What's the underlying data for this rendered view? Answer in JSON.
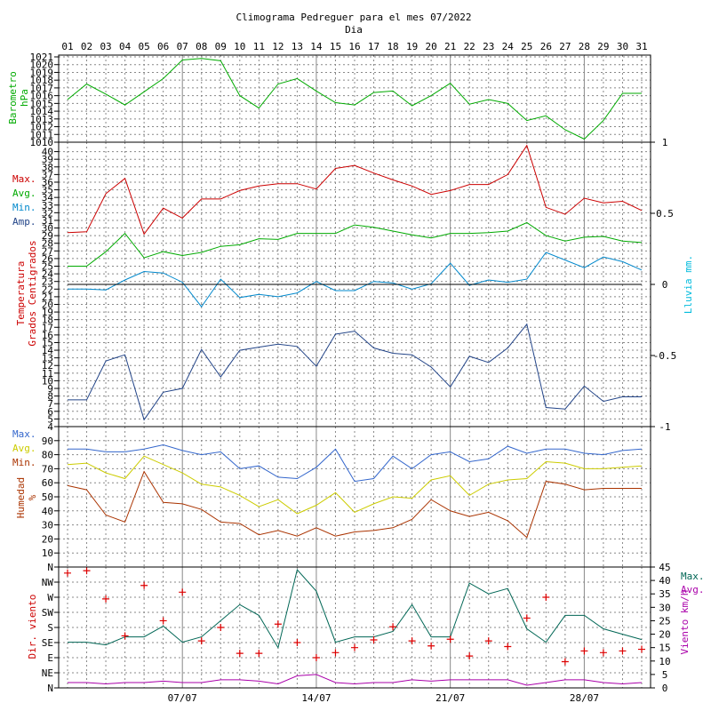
{
  "title": "Climograma Pedreguer para el mes 07/2022",
  "xlabel": "Dia",
  "days": [
    "01",
    "02",
    "03",
    "04",
    "05",
    "06",
    "07",
    "08",
    "09",
    "10",
    "11",
    "12",
    "13",
    "14",
    "15",
    "16",
    "17",
    "18",
    "19",
    "20",
    "21",
    "22",
    "23",
    "24",
    "25",
    "26",
    "27",
    "28",
    "29",
    "30",
    "31"
  ],
  "week_labels": [
    "07/07",
    "14/07",
    "21/07",
    "28/07"
  ],
  "colors": {
    "red": "#cc0000",
    "green": "#00aa00",
    "lightblue": "#0088cc",
    "darkblue": "#224488",
    "humblue": "#3366cc",
    "yellow": "#cccc00",
    "brown": "#aa3300",
    "teal": "#006655",
    "magenta": "#aa00aa",
    "cross": "#dd0000",
    "cyan": "#00bbdd",
    "axis": "#000000",
    "grid": "#888888"
  },
  "chart_data": [
    {
      "type": "line",
      "ylabel": [
        "Barometro",
        "hPa"
      ],
      "ylim": [
        1010,
        1021
      ],
      "y_ticks": [
        "1010",
        "1011",
        "1012",
        "1013",
        "1014",
        "1015",
        "1016",
        "1017",
        "1018",
        "1019",
        "1020",
        "1021"
      ],
      "series": [
        {
          "name": "Barometro",
          "values": [
            1015.5,
            1017.5,
            1016.2,
            1014.8,
            1016.5,
            1018.2,
            1020.6,
            1020.8,
            1020.5,
            1016,
            1014.4,
            1017.5,
            1018.2,
            1016.6,
            1015.1,
            1014.8,
            1016.4,
            1016.6,
            1014.7,
            1016,
            1017.6,
            1014.9,
            1015.5,
            1015,
            1012.8,
            1013.4,
            1011.6,
            1010.4,
            1012.8,
            1016.3,
            1016.3
          ]
        }
      ]
    },
    {
      "type": "line",
      "ylabel": [
        "Temperatura",
        "Grados Centigrados"
      ],
      "y2label": "Lluvia mm.",
      "ylim": [
        4,
        41
      ],
      "y_ticks": [
        "4",
        "5",
        "6",
        "7",
        "8",
        "9",
        "10",
        "11",
        "12",
        "13",
        "14",
        "15",
        "16",
        "17",
        "18",
        "19",
        "20",
        "21",
        "22",
        "23",
        "24",
        "25",
        "26",
        "27",
        "28",
        "29",
        "30",
        "31",
        "32",
        "33",
        "34",
        "35",
        "36",
        "37",
        "38",
        "39",
        "40"
      ],
      "y2lim": [
        -1,
        1
      ],
      "y2_ticks": [
        "-1",
        "-0.5",
        "0",
        "0.5",
        "1"
      ],
      "legend": [
        "Max.",
        "Avg.",
        "Min.",
        "Amp."
      ],
      "series": [
        {
          "name": "Max.",
          "values": [
            29.4,
            29.5,
            34.5,
            36.5,
            29.2,
            32.6,
            31.3,
            33.8,
            33.8,
            34.9,
            35.5,
            35.8,
            35.8,
            35.1,
            37.8,
            38.2,
            37.2,
            36.3,
            35.5,
            34.4,
            34.9,
            35.7,
            35.7,
            37,
            40.8,
            32.7,
            31.8,
            33.9,
            33.3,
            33.5,
            32.3
          ]
        },
        {
          "name": "Avg.",
          "values": [
            25,
            25,
            26.9,
            29.3,
            26.1,
            26.9,
            26.4,
            26.8,
            27.6,
            27.8,
            28.6,
            28.5,
            29.3,
            29.3,
            29.3,
            30.4,
            30.1,
            29.6,
            29.1,
            28.7,
            29.3,
            29.3,
            29.4,
            29.6,
            30.7,
            29,
            28.3,
            28.8,
            28.9,
            28.3,
            28.1
          ]
        },
        {
          "name": "Min.",
          "values": [
            22,
            22,
            21.9,
            23.2,
            24.3,
            24.1,
            22.9,
            19.7,
            23.3,
            20.9,
            21.3,
            21,
            21.5,
            23,
            21.8,
            21.8,
            23,
            22.8,
            22,
            22.7,
            25.4,
            22.5,
            23.2,
            22.9,
            23.3,
            26.8,
            25.8,
            24.8,
            26.2,
            25.6,
            24.5
          ]
        },
        {
          "name": "Amp.",
          "values": [
            7.5,
            7.5,
            12.6,
            13.4,
            4.9,
            8.5,
            9,
            14.1,
            10.5,
            14,
            14.4,
            14.8,
            14.5,
            11.9,
            16.1,
            16.5,
            14.3,
            13.6,
            13.4,
            11.8,
            9.2,
            13.2,
            12.4,
            14.3,
            17.4,
            6.5,
            6.3,
            9.3,
            7.3,
            7.9,
            7.9
          ]
        },
        {
          "name": "Lluvia",
          "values": [
            0,
            0,
            0,
            0,
            0,
            0,
            0,
            0,
            0,
            0,
            0,
            0,
            0,
            0,
            0,
            0,
            0,
            0,
            0,
            0,
            0,
            0,
            0,
            0,
            0,
            0,
            0,
            0,
            0,
            0,
            0
          ]
        }
      ]
    },
    {
      "type": "line",
      "ylabel": [
        "Humedad",
        "%"
      ],
      "ylim": [
        0,
        100
      ],
      "y_ticks": [
        "10",
        "20",
        "30",
        "40",
        "50",
        "60",
        "70",
        "80",
        "90"
      ],
      "legend": [
        "Max.",
        "Avg.",
        "Min."
      ],
      "series": [
        {
          "name": "Max.",
          "values": [
            84,
            84,
            82,
            82,
            84,
            87,
            83,
            80,
            82,
            70,
            72,
            64,
            63,
            71,
            84,
            61,
            63,
            79,
            70,
            80,
            82,
            75,
            77,
            86,
            81,
            84,
            84,
            81,
            80,
            83,
            84
          ]
        },
        {
          "name": "Avg.",
          "values": [
            73,
            74,
            67,
            63,
            79,
            73,
            67,
            59,
            57,
            51,
            43,
            48,
            38,
            44,
            53,
            39,
            45,
            50,
            49,
            62,
            65,
            51,
            59,
            62,
            63,
            75,
            74,
            70,
            70,
            71,
            72
          ]
        },
        {
          "name": "Min.",
          "values": [
            58,
            55,
            37,
            32,
            68,
            46,
            45,
            41,
            32,
            31,
            23,
            26,
            22,
            28,
            22,
            25,
            26,
            28,
            34,
            48,
            40,
            36,
            39,
            33,
            21,
            61,
            59,
            55,
            56,
            56,
            56
          ]
        }
      ]
    },
    {
      "type": "line",
      "ylabel_left": "Dir. viento",
      "ylabel_right": "Viento km/h",
      "direction_ticks": [
        "N",
        "NE",
        "E",
        "SE",
        "S",
        "SW",
        "W",
        "NW",
        "N"
      ],
      "speed_ticks": [
        "0",
        "5",
        "10",
        "15",
        "20",
        "25",
        "30",
        "35",
        "40",
        "45"
      ],
      "speed_lim": [
        0,
        45
      ],
      "legend": [
        "Max.",
        "Avg."
      ],
      "series": [
        {
          "name": "Max.",
          "values": [
            17,
            17,
            16,
            19,
            19,
            23,
            17,
            19,
            25,
            31,
            27,
            15,
            44,
            36,
            17,
            19,
            19,
            21,
            31,
            19,
            19,
            39,
            35,
            37,
            22,
            17,
            27,
            27,
            22,
            20,
            18
          ]
        },
        {
          "name": "Avg.",
          "values": [
            2,
            2,
            1.5,
            2,
            2,
            2.5,
            2,
            2,
            3,
            3,
            2.5,
            1.5,
            4.5,
            5,
            2,
            1.5,
            2,
            2,
            3,
            2.5,
            3,
            3,
            3,
            3,
            1,
            2,
            3,
            3,
            2,
            1.5,
            2
          ]
        },
        {
          "name": "Direccion (deg)",
          "values": [
            342,
            349,
            265,
            155,
            305,
            200,
            285,
            140,
            180,
            103,
            103,
            190,
            135,
            90,
            105,
            120,
            143,
            182,
            140,
            125,
            145,
            95,
            140,
            123,
            208,
            270,
            78,
            110,
            105,
            110,
            115
          ]
        }
      ]
    }
  ]
}
